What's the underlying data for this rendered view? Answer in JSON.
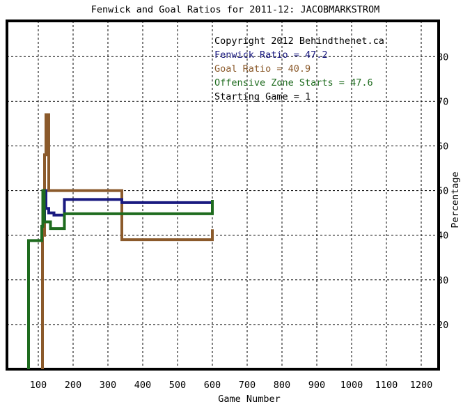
{
  "chart_data": {
    "type": "line",
    "title": "Fenwick and Goal Ratios for 2011-12: JACOBMARKSTROM",
    "xlabel": "Game Number",
    "ylabel": "Percentage",
    "xlim": [
      10,
      1250
    ],
    "ylim": [
      10,
      88
    ],
    "x_ticks": [
      100,
      200,
      300,
      400,
      500,
      600,
      700,
      800,
      900,
      1000,
      1100,
      1200
    ],
    "y_ticks": [
      20,
      30,
      40,
      50,
      60,
      70,
      80
    ],
    "grid": true,
    "legend_position": "top-right",
    "copyright": "Copyright 2012 Behindthenet.ca",
    "annotations": [
      {
        "text": "Fenwick Ratio = 47.2",
        "color": "#1a1a80"
      },
      {
        "text": "Goal Ratio = 40.9",
        "color": "#8b5a2b"
      },
      {
        "text": "Offensive Zone Starts = 47.6",
        "color": "#1e6b1e"
      },
      {
        "text": "Starting Game = 1",
        "color": "#000000"
      }
    ],
    "series": [
      {
        "name": "Goal Ratio",
        "color": "#8b5a2b",
        "points": [
          [
            112,
            10
          ],
          [
            112,
            40
          ],
          [
            118,
            40
          ],
          [
            118,
            58
          ],
          [
            122,
            58
          ],
          [
            122,
            67
          ],
          [
            130,
            67
          ],
          [
            130,
            50
          ],
          [
            340,
            50
          ],
          [
            340,
            39
          ],
          [
            600,
            39
          ],
          [
            600,
            41
          ],
          [
            604,
            41
          ]
        ]
      },
      {
        "name": "Fenwick Ratio",
        "color": "#1a1a80",
        "points": [
          [
            118,
            43
          ],
          [
            118,
            50
          ],
          [
            122,
            50
          ],
          [
            122,
            46
          ],
          [
            130,
            46
          ],
          [
            130,
            45
          ],
          [
            145,
            45
          ],
          [
            145,
            44.5
          ],
          [
            175,
            44.5
          ],
          [
            175,
            48
          ],
          [
            340,
            48
          ],
          [
            340,
            47.3
          ],
          [
            604,
            47.3
          ]
        ]
      },
      {
        "name": "Offensive Zone Starts",
        "color": "#1e6b1e",
        "points": [
          [
            72,
            10
          ],
          [
            72,
            38.8
          ],
          [
            110,
            38.8
          ],
          [
            110,
            42
          ],
          [
            113,
            42
          ],
          [
            113,
            50
          ],
          [
            117,
            50
          ],
          [
            117,
            43
          ],
          [
            135,
            43
          ],
          [
            135,
            41.5
          ],
          [
            175,
            41.5
          ],
          [
            175,
            44.8
          ],
          [
            600,
            44.8
          ],
          [
            600,
            47.6
          ],
          [
            604,
            47.6
          ]
        ]
      }
    ]
  }
}
